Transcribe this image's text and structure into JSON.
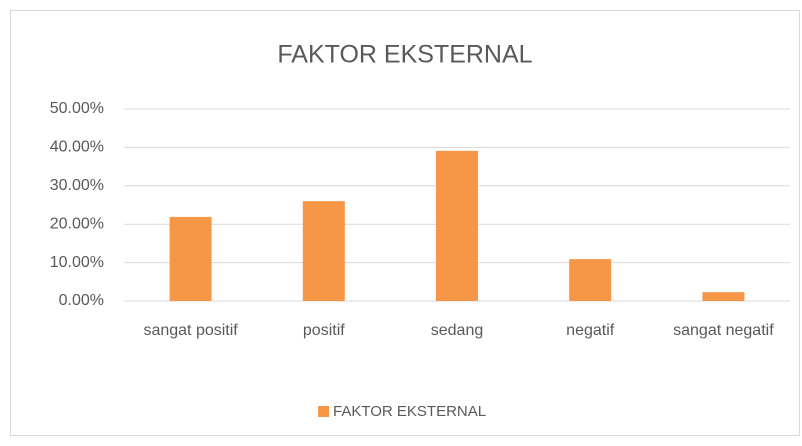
{
  "chart_data": {
    "type": "bar",
    "title": "FAKTOR EKSTERNAL",
    "categories": [
      "sangat positif",
      "positif",
      "sedang",
      "negatif",
      "sangat negatif"
    ],
    "series": [
      {
        "name": "FAKTOR EKSTERNAL",
        "color": "#f79646",
        "values": [
          21.9,
          26.0,
          39.1,
          10.9,
          2.3
        ]
      }
    ],
    "ylim": [
      0,
      50
    ],
    "yticks": [
      {
        "value": 0,
        "label": "0.00%"
      },
      {
        "value": 10,
        "label": "10.00%"
      },
      {
        "value": 20,
        "label": "20.00%"
      },
      {
        "value": 30,
        "label": "30.00%"
      },
      {
        "value": 40,
        "label": "40.00%"
      },
      {
        "value": 50,
        "label": "50.00%"
      }
    ],
    "grid": true,
    "legend": "bottom"
  }
}
